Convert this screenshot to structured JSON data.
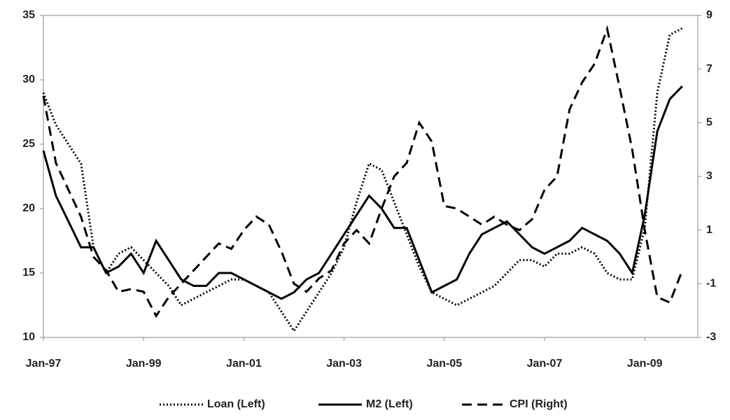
{
  "chart_data": {
    "type": "line",
    "categories": [
      "Jan-97",
      null,
      null,
      null,
      null,
      null,
      null,
      null,
      "Jan-99",
      null,
      null,
      null,
      null,
      null,
      null,
      null,
      "Jan-01",
      null,
      null,
      null,
      null,
      null,
      null,
      null,
      "Jan-03",
      null,
      null,
      null,
      null,
      null,
      null,
      null,
      "Jan-05",
      null,
      null,
      null,
      null,
      null,
      null,
      null,
      "Jan-07",
      null,
      null,
      null,
      null,
      null,
      null,
      null,
      "Jan-09",
      null,
      null,
      null
    ],
    "ylim": [
      10,
      35
    ],
    "yticks": [
      10,
      15,
      20,
      25,
      30,
      35
    ],
    "y2lim": [
      -3,
      9
    ],
    "y2ticks": [
      -3,
      -1,
      1,
      3,
      5,
      7,
      9
    ],
    "legend": "bottom",
    "series": [
      {
        "name": "Loan (Left)",
        "color": "#000000",
        "style": "dotted",
        "values": [
          29,
          26.5,
          25,
          23.5,
          17,
          15,
          16.5,
          17,
          16,
          15,
          14,
          12.5,
          13,
          13.5,
          14,
          14.5,
          14.5,
          14,
          13.5,
          12,
          10.5,
          12,
          13.5,
          15,
          17,
          20.5,
          23.5,
          23,
          20.5,
          18,
          15.5,
          13.5,
          13,
          12.5,
          13,
          13.5,
          14,
          15,
          16,
          16,
          15.5,
          16.5,
          16.5,
          17,
          16.5,
          15,
          14.5,
          14.5,
          18.5,
          29,
          33.5,
          34
        ]
      },
      {
        "name": "M2 (Left)",
        "color": "#000000",
        "style": "solid",
        "values": [
          24.5,
          21,
          19,
          17,
          17,
          15,
          15.5,
          16.5,
          15,
          17.5,
          16,
          14.5,
          14,
          14,
          15,
          15,
          14.5,
          14,
          13.5,
          13,
          13.5,
          14.5,
          15,
          16.5,
          18,
          19.5,
          21,
          20,
          18.5,
          18.5,
          16,
          13.5,
          14,
          14.5,
          16.5,
          18,
          18.5,
          19,
          18,
          17,
          16.5,
          17,
          17.5,
          18.5,
          18,
          17.5,
          16.5,
          15,
          19.5,
          26,
          28.5,
          29.5
        ]
      },
      {
        "name": "CPI (Right)",
        "color": "#000000",
        "style": "dashed",
        "axis": "y2",
        "values": [
          6,
          3.5,
          2.5,
          1.5,
          0,
          -0.5,
          -1.3,
          -1.2,
          -1.3,
          -2.2,
          -1.5,
          -1,
          -0.5,
          0,
          0.5,
          0.3,
          1,
          1.5,
          1.2,
          0.2,
          -1,
          -1.3,
          -0.8,
          -0.5,
          0.5,
          1,
          0.5,
          1.8,
          3,
          3.5,
          5,
          4.3,
          1.9,
          1.8,
          1.5,
          1.2,
          1.5,
          1.2,
          1,
          1.4,
          2.5,
          3,
          5.5,
          6.5,
          7.2,
          8.5,
          6.3,
          4,
          1,
          -1.5,
          -1.7,
          -0.5
        ]
      }
    ]
  }
}
